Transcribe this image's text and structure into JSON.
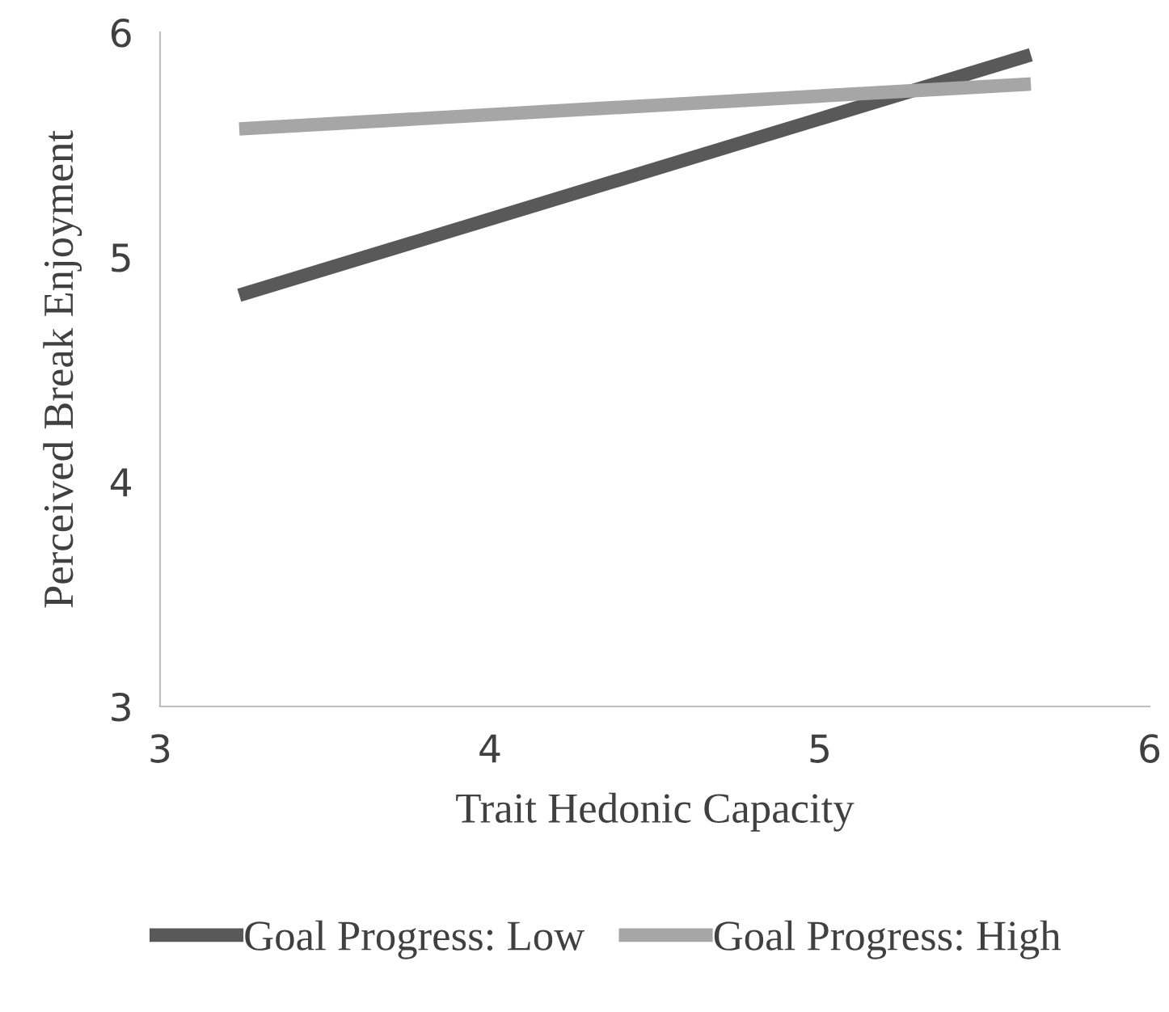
{
  "chart_data": {
    "type": "line",
    "xlabel": "Trait Hedonic Capacity",
    "ylabel": "Perceived Break Enjoyment",
    "x": [
      3.24,
      5.64
    ],
    "series": [
      {
        "name": "Goal Progress: Low",
        "color": "#595959",
        "values": [
          4.83,
          5.9
        ]
      },
      {
        "name": "Goal Progress: High",
        "color": "#a6a6a6",
        "values": [
          5.57,
          5.77
        ]
      }
    ],
    "xlim": [
      3,
      6
    ],
    "xticks": [
      3,
      4,
      5,
      6
    ],
    "ylim": [
      3,
      6
    ],
    "yticks": [
      3,
      4,
      5,
      6
    ],
    "grid": false,
    "legend": "bottom",
    "marker": "none",
    "line_style": "solid"
  }
}
